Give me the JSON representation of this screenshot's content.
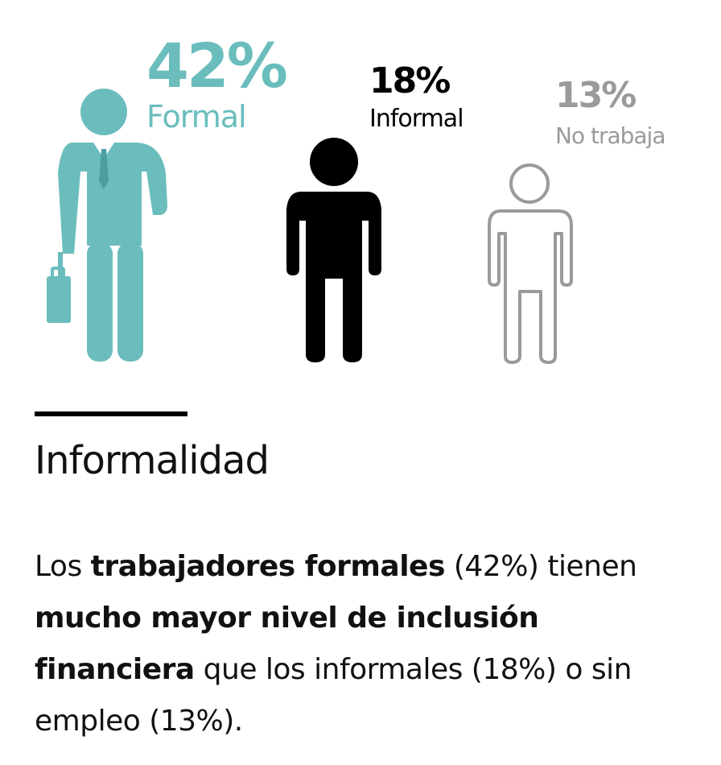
{
  "colors": {
    "formal": "#6bbdbd",
    "informal": "#000000",
    "notrabaja": "#9a9a9a",
    "text": "#111111",
    "rule": "#000000"
  },
  "stats": {
    "formal": {
      "percent": "42%",
      "label": "Formal",
      "icon": "businessman-with-briefcase-icon"
    },
    "informal": {
      "percent": "18%",
      "label": "Informal",
      "icon": "person-solid-icon"
    },
    "notrabaja": {
      "percent": "13%",
      "label": "No trabaja",
      "icon": "person-outline-icon"
    }
  },
  "heading": "Informalidad",
  "paragraph": {
    "seg1": "Los ",
    "seg2_bold": "trabajadores formales",
    "seg3": " (42%) tienen ",
    "seg4_bold": "mucho mayor nivel de inclusión financiera",
    "seg5": " que los informales (18%) o sin empleo (13%)."
  }
}
